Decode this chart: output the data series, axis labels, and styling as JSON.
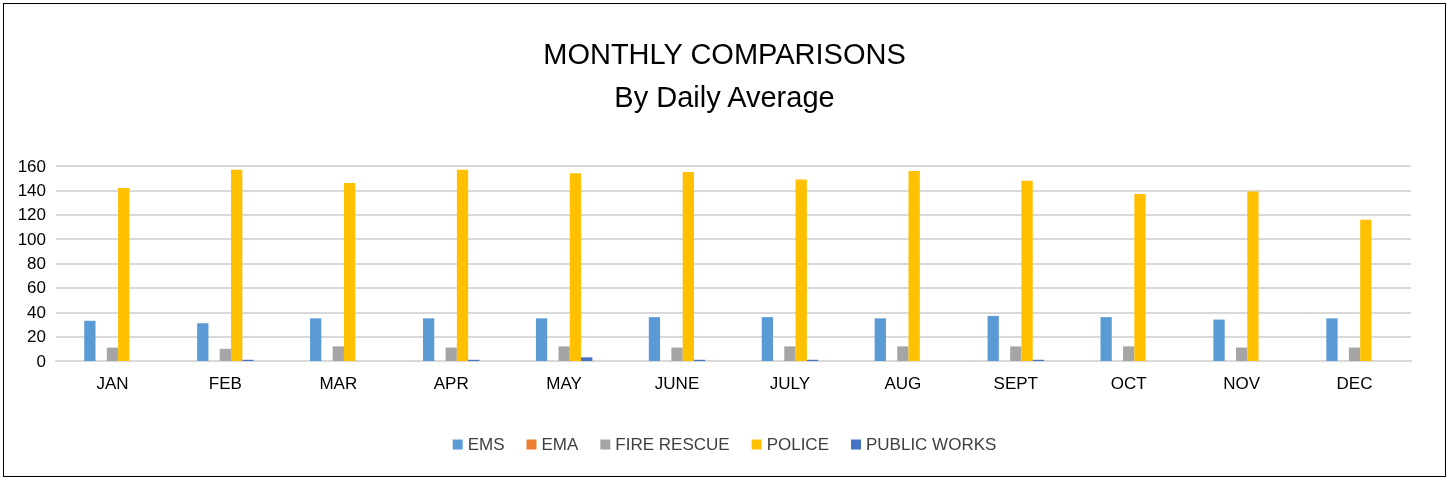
{
  "chart_data": {
    "type": "bar",
    "title": "MONTHLY COMPARISONS",
    "subtitle": "By Daily Average",
    "categories": [
      "JAN",
      "FEB",
      "MAR",
      "APR",
      "MAY",
      "JUNE",
      "JULY",
      "AUG",
      "SEPT",
      "OCT",
      "NOV",
      "DEC"
    ],
    "series": [
      {
        "name": "EMS",
        "color": "#5b9bd5",
        "values": [
          33,
          31,
          35,
          35,
          35,
          36,
          36,
          35,
          37,
          36,
          34,
          35
        ]
      },
      {
        "name": "EMA",
        "color": "#ed7d31",
        "values": [
          0,
          0,
          0,
          0,
          0,
          0,
          0,
          0,
          0,
          0,
          0,
          0
        ]
      },
      {
        "name": "FIRE RESCUE",
        "color": "#a5a5a5",
        "values": [
          11,
          10,
          12,
          11,
          12,
          11,
          12,
          12,
          12,
          12,
          11,
          11
        ]
      },
      {
        "name": "POLICE",
        "color": "#ffc000",
        "values": [
          142,
          157,
          146,
          157,
          154,
          155,
          149,
          156,
          148,
          137,
          139,
          116
        ]
      },
      {
        "name": "PUBLIC WORKS",
        "color": "#4472c4",
        "values": [
          0,
          1,
          0,
          1,
          3,
          1,
          1,
          0,
          1,
          0,
          0,
          0
        ]
      }
    ],
    "ylim": [
      0,
      160
    ],
    "yticks": [
      0,
      20,
      40,
      60,
      80,
      100,
      120,
      140,
      160
    ],
    "grid": "y",
    "legend": "bottom"
  }
}
